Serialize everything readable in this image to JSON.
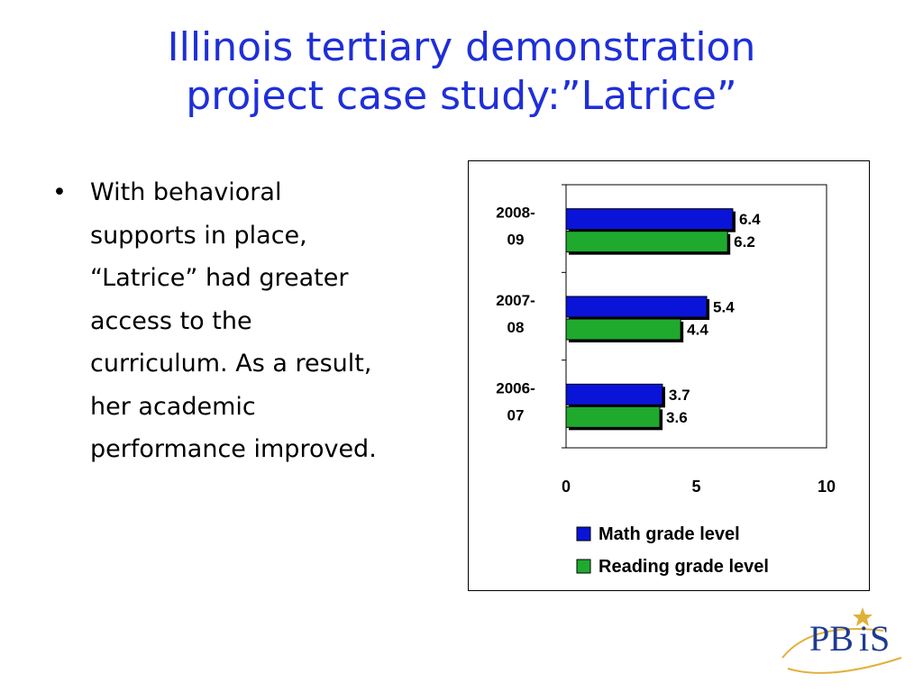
{
  "slide": {
    "title_lines": [
      "Illinois tertiary demonstration",
      "project case study:”Latrice”"
    ],
    "bullet_lines": [
      "With behavioral",
      "supports in place,",
      "“Latrice” had greater",
      "access to the",
      "curriculum. As a result,",
      "her academic",
      "performance improved."
    ],
    "bullet_symbol": "•"
  },
  "chart_data": {
    "type": "bar",
    "orientation": "horizontal",
    "categories": [
      [
        "2008-",
        "09"
      ],
      [
        "2007-",
        "08"
      ],
      [
        "2006-",
        "07"
      ]
    ],
    "series": [
      {
        "name": "Math grade level",
        "values": [
          6.4,
          5.4,
          3.7
        ],
        "color": "#0a14d8"
      },
      {
        "name": "Reading grade level",
        "values": [
          6.2,
          4.4,
          3.6
        ],
        "color": "#1faa2e"
      }
    ],
    "xlim": [
      0,
      10
    ],
    "xticks": [
      "0",
      "5",
      "10"
    ],
    "data_labels": true,
    "legend_position": "bottom",
    "grid": false
  },
  "logo": {
    "text_left": "PB",
    "text_right": "S",
    "letter_i": "i",
    "color": "#1f3b8f",
    "gold": "#e0b13a"
  }
}
